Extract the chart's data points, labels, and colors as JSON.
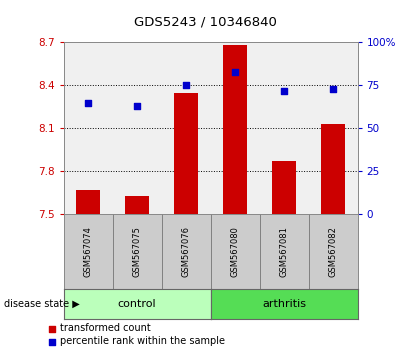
{
  "title": "GDS5243 / 10346840",
  "samples": [
    "GSM567074",
    "GSM567075",
    "GSM567076",
    "GSM567080",
    "GSM567081",
    "GSM567082"
  ],
  "bar_values": [
    7.67,
    7.63,
    8.35,
    8.68,
    7.87,
    8.13
  ],
  "dot_values": [
    65,
    63,
    75,
    83,
    72,
    73
  ],
  "bar_color": "#cc0000",
  "dot_color": "#0000cc",
  "ylim_left": [
    7.5,
    8.7
  ],
  "ylim_right": [
    0,
    100
  ],
  "yticks_left": [
    7.5,
    7.8,
    8.1,
    8.4,
    8.7
  ],
  "ytick_labels_left": [
    "7.5",
    "7.8",
    "8.1",
    "8.4",
    "8.7"
  ],
  "yticks_right": [
    0,
    25,
    50,
    75,
    100
  ],
  "ytick_labels_right": [
    "0",
    "25",
    "50",
    "75",
    "100%"
  ],
  "gridlines_at": [
    7.8,
    8.1,
    8.4
  ],
  "control_color": "#bbffbb",
  "arthritis_color": "#55dd55",
  "group_label_control": "control",
  "group_label_arthritis": "arthritis",
  "disease_state_label": "disease state",
  "legend_bar_label": "transformed count",
  "legend_dot_label": "percentile rank within the sample",
  "background_plot": "#f0f0f0",
  "background_xlabel": "#cccccc",
  "title_fontsize": 9.5
}
